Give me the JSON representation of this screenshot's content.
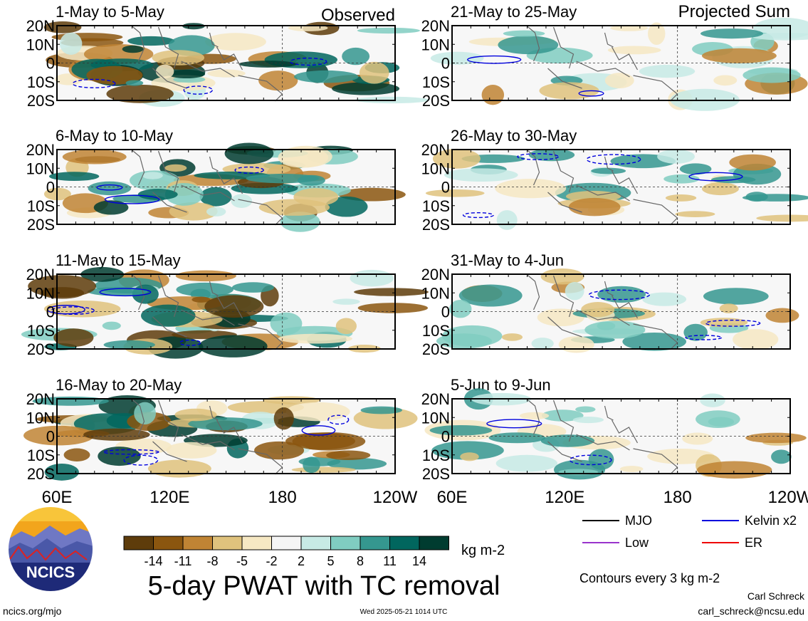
{
  "chart_data": {
    "type": "heatmap",
    "headers": {
      "observed": "Observed",
      "projected": "Projected Sum"
    },
    "panels": [
      {
        "title": "1-May to 5-May"
      },
      {
        "title": "6-May to 10-May"
      },
      {
        "title": "11-May to 15-May"
      },
      {
        "title": "16-May to 20-May"
      },
      {
        "title": "21-May to 25-May"
      },
      {
        "title": "26-May to 30-May"
      },
      {
        "title": "31-May to 4-Jun"
      },
      {
        "title": "5-Jun to 9-Jun"
      }
    ],
    "lat_ticks": [
      "20N",
      "10N",
      "0",
      "10S",
      "20S"
    ],
    "lon_ticks": [
      "60E",
      "120E",
      "180",
      "120W"
    ],
    "lon_tick_values": [
      60,
      120,
      180,
      240
    ],
    "lat_range": [
      -20,
      20
    ],
    "lon_range": [
      60,
      240
    ],
    "colorbar": {
      "colors": [
        "#5e3c0b",
        "#8b560f",
        "#c08434",
        "#dfc27d",
        "#f6e8c3",
        "#f5f5f5",
        "#c7eae5",
        "#80cdc1",
        "#35978f",
        "#01665e",
        "#003c30"
      ],
      "labels": [
        "-14",
        "-11",
        "-8",
        "-5",
        "-2",
        "2",
        "5",
        "8",
        "11",
        "14"
      ],
      "units": "kg m-2"
    },
    "legend": [
      {
        "name": "MJO",
        "color": "#000000"
      },
      {
        "name": "Kelvin x2",
        "color": "#0000dd"
      },
      {
        "name": "Low",
        "color": "#9933cc"
      },
      {
        "name": "ER",
        "color": "#ee0000"
      }
    ],
    "contour_note": "Contours every 3 kg m-2",
    "title": "5-day PWAT with TC removal",
    "logo_text": "NCICS"
  },
  "footer": {
    "left": "ncics.org/mjo",
    "center": "Wed 2025-05-21 1014 UTC",
    "author": "Carl Schreck",
    "email": "carl_schreck@ncsu.edu"
  }
}
